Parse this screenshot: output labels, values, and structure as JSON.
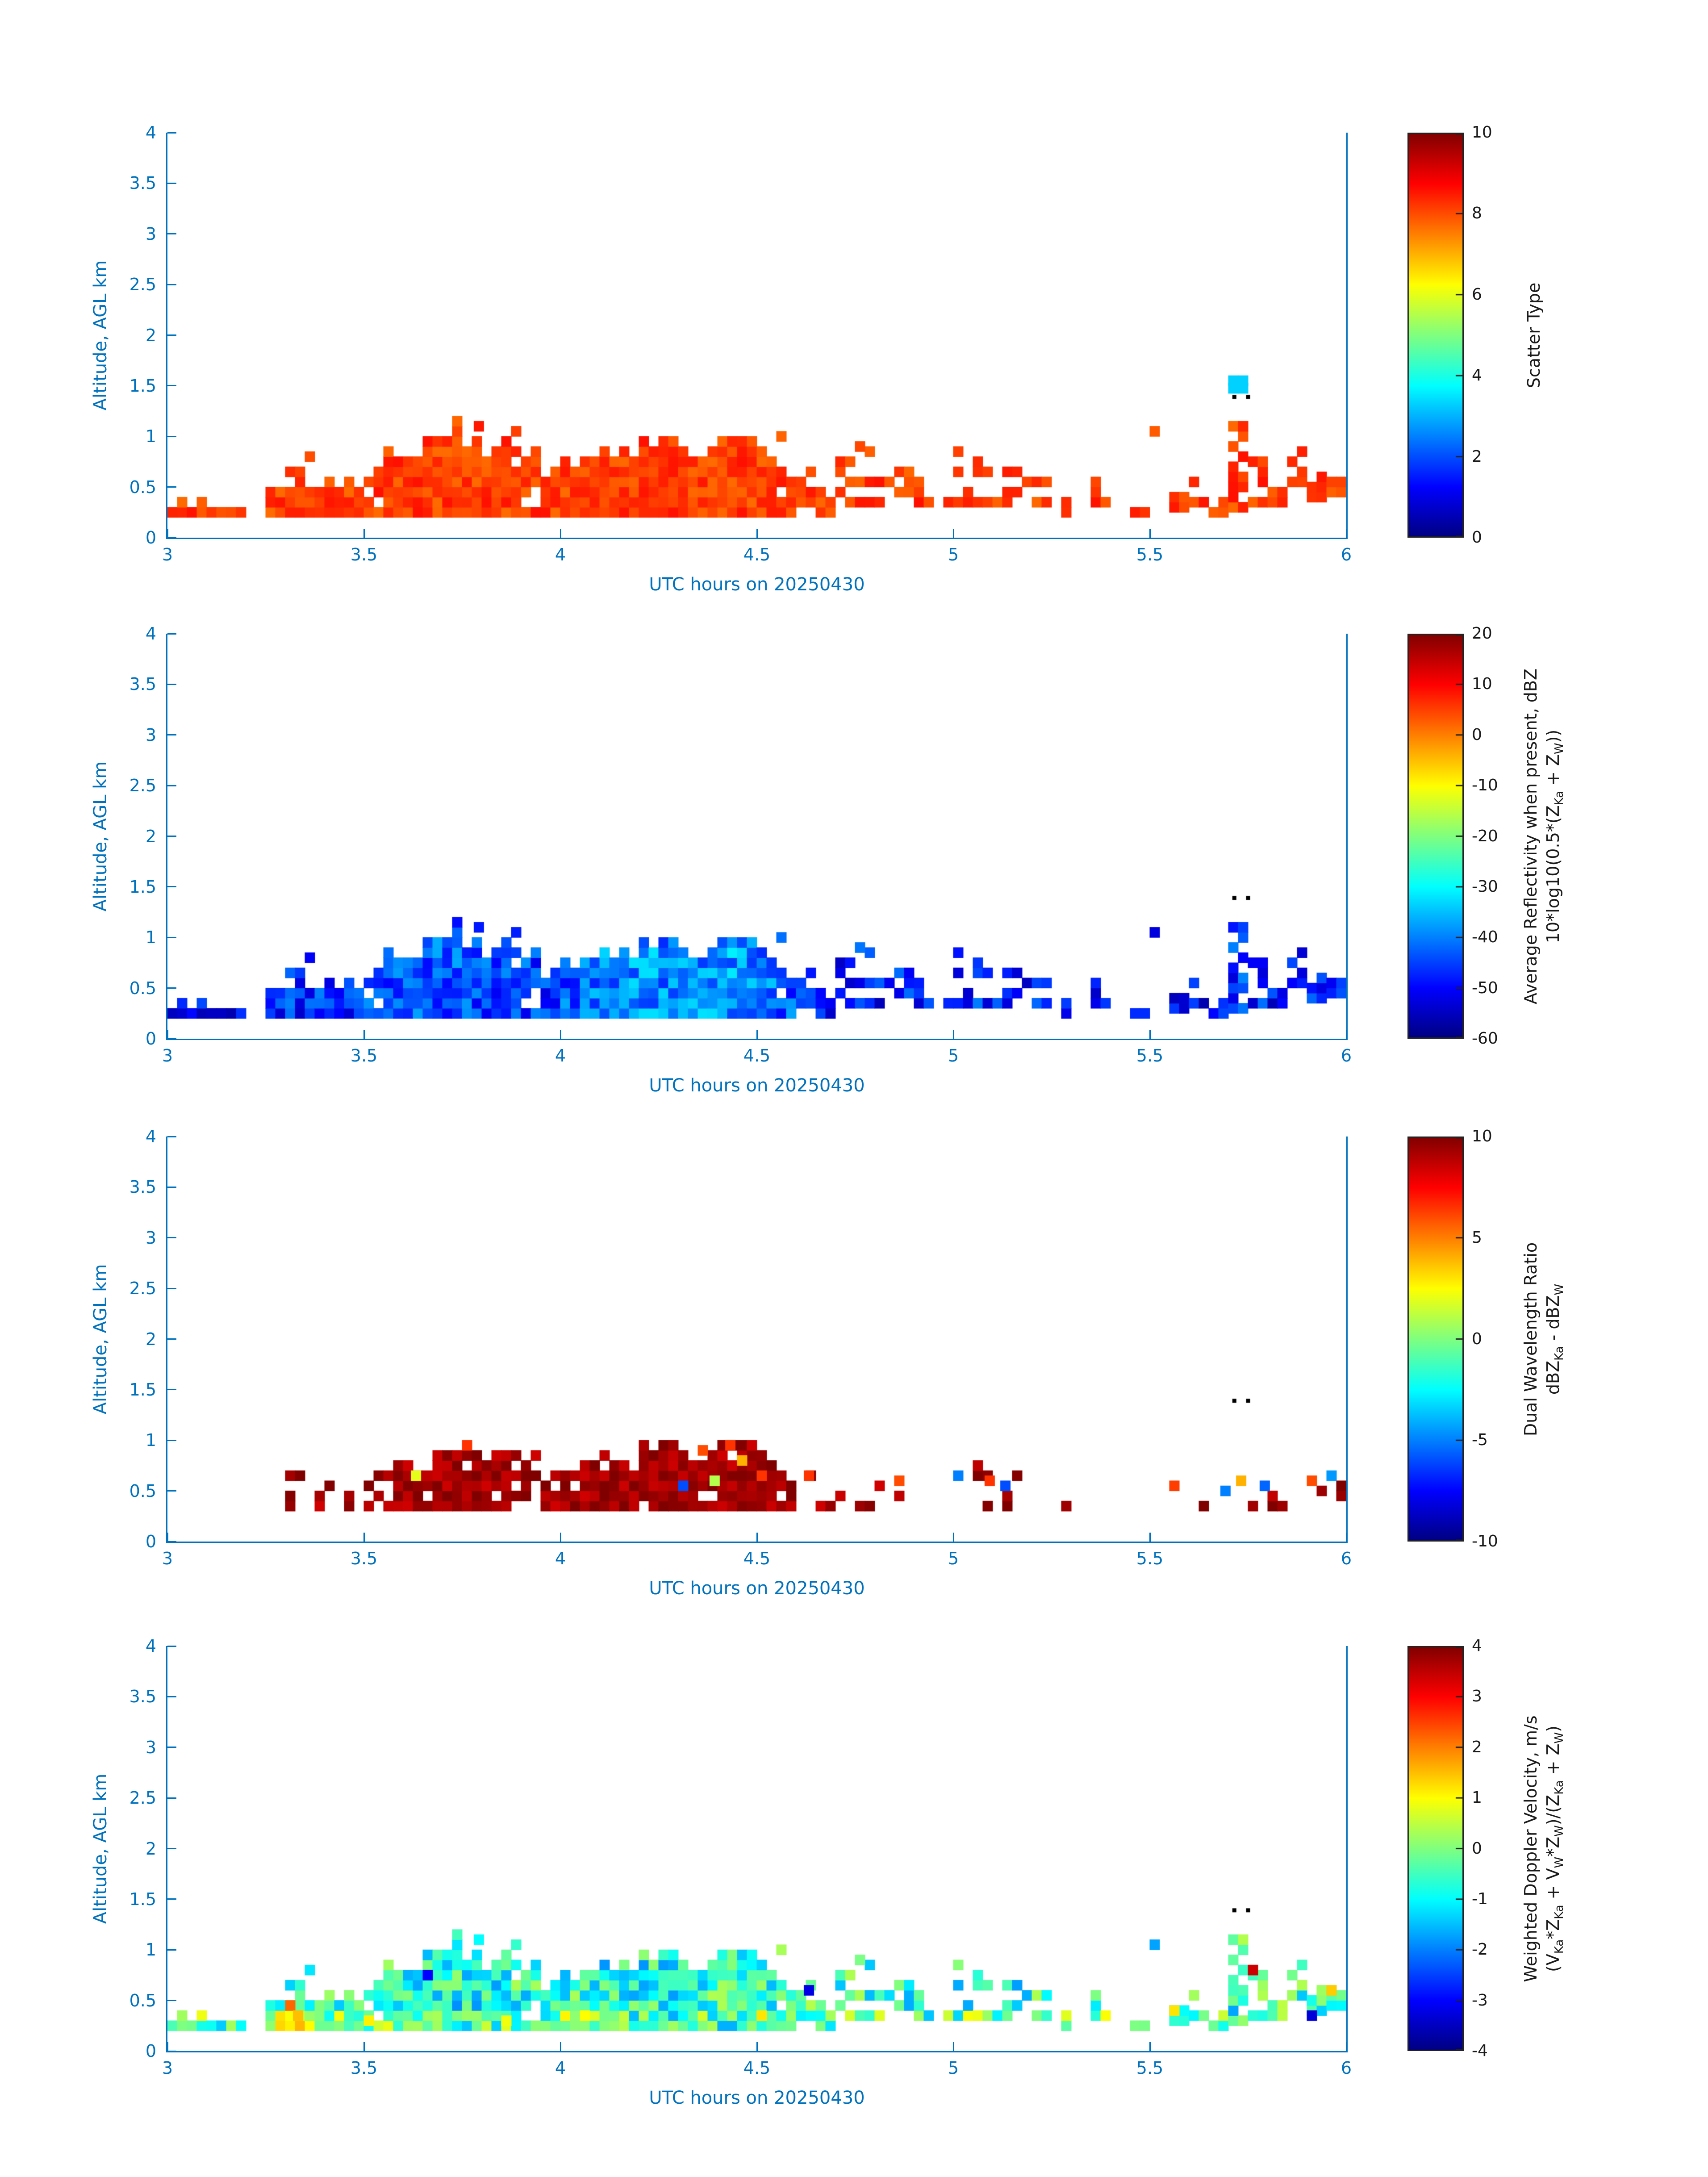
{
  "figure": {
    "background": "#ffffff",
    "axis_color": "#0072BD",
    "colorbar_text_color": "#1a1a1a",
    "date_label": "20250430"
  },
  "chart_data": {
    "type": "heatmap",
    "description": "Four stacked time-height radar quicklook panels, UTC hours 3 to 6 on 20250430, altitude 0 to 4 km AGL, jet colormap",
    "shared": {
      "xlabel": "UTC hours on 20250430",
      "ylabel": "Altitude, AGL km",
      "xlim": [
        3,
        6
      ],
      "ylim": [
        0,
        4
      ],
      "xticks": [
        "3",
        "3.5",
        "4",
        "4.5",
        "5",
        "5.5",
        "6"
      ],
      "yticks": [
        "0",
        "0.5",
        "1",
        "1.5",
        "2",
        "2.5",
        "3",
        "3.5",
        "4"
      ],
      "grid_dt_hours": 0.025,
      "grid_dz_km": 0.1,
      "columns_format": [
        "t_start_utc_h",
        "cloud_base_km",
        "cloud_top_km",
        "fill_density",
        "avg_reflectivity_dBZ",
        "doppler_velocity_ms"
      ],
      "columns": [
        [
          3.0,
          0.2,
          0.35,
          0.7,
          -50,
          -0.6
        ],
        [
          3.05,
          0.2,
          0.3,
          0.6,
          -50,
          -0.5
        ],
        [
          3.1,
          0.2,
          0.3,
          0.5,
          -51,
          -0.6
        ],
        [
          3.15,
          0.2,
          0.3,
          0.6,
          -50,
          -0.7
        ],
        [
          3.25,
          0.2,
          0.45,
          0.8,
          -48,
          -0.4
        ],
        [
          3.3,
          0.2,
          0.65,
          0.7,
          -47,
          -0.3
        ],
        [
          3.35,
          0.2,
          0.55,
          0.9,
          -46,
          -0.5
        ],
        [
          3.4,
          0.2,
          0.55,
          0.9,
          -46,
          -0.6
        ],
        [
          3.45,
          0.2,
          0.45,
          0.9,
          -47,
          -0.5
        ],
        [
          3.5,
          0.2,
          0.65,
          0.9,
          -45,
          -0.6
        ],
        [
          3.55,
          0.2,
          0.75,
          0.95,
          -44,
          -0.7
        ],
        [
          3.6,
          0.2,
          0.9,
          1,
          -43,
          -0.8
        ],
        [
          3.65,
          0.2,
          1.0,
          1,
          -43,
          -0.9
        ],
        [
          3.7,
          0.2,
          1.1,
          0.95,
          -43,
          -0.9
        ],
        [
          3.75,
          0.2,
          0.95,
          0.95,
          -44,
          -0.8
        ],
        [
          3.8,
          0.2,
          0.9,
          0.9,
          -44,
          -0.8
        ],
        [
          3.85,
          0.2,
          0.95,
          0.9,
          -44,
          -0.7
        ],
        [
          3.9,
          0.2,
          0.75,
          0.9,
          -45,
          -0.7
        ],
        [
          3.95,
          0.2,
          0.6,
          0.9,
          -46,
          -0.6
        ],
        [
          4.0,
          0.2,
          0.65,
          0.95,
          -43,
          -0.6
        ],
        [
          4.05,
          0.2,
          0.75,
          1,
          -41,
          -0.7
        ],
        [
          4.1,
          0.2,
          0.85,
          1,
          -40,
          -0.8
        ],
        [
          4.15,
          0.2,
          0.85,
          1,
          -39,
          -0.8
        ],
        [
          4.2,
          0.2,
          0.9,
          1,
          -39,
          -0.8
        ],
        [
          4.25,
          0.2,
          0.95,
          1,
          -40,
          -0.8
        ],
        [
          4.3,
          0.2,
          0.85,
          1,
          -40,
          -0.7
        ],
        [
          4.35,
          0.2,
          0.85,
          1,
          -39,
          -0.7
        ],
        [
          4.4,
          0.2,
          0.95,
          1,
          -38,
          -0.7
        ],
        [
          4.45,
          0.2,
          1.0,
          1,
          -39,
          -0.8
        ],
        [
          4.5,
          0.2,
          0.9,
          1,
          -40,
          -0.8
        ],
        [
          4.55,
          0.2,
          0.65,
          0.9,
          -43,
          -0.7
        ],
        [
          4.6,
          0.3,
          0.7,
          0.7,
          -46,
          -0.6
        ],
        [
          4.65,
          0.2,
          0.5,
          0.8,
          -47,
          -0.5
        ],
        [
          4.7,
          0.3,
          0.8,
          0.5,
          -48,
          -0.6
        ],
        [
          4.75,
          0.3,
          0.9,
          0.45,
          -48,
          -0.6
        ],
        [
          4.8,
          0.3,
          0.6,
          0.5,
          -49,
          -0.6
        ],
        [
          4.85,
          0.4,
          0.85,
          0.45,
          -48,
          -0.7
        ],
        [
          4.9,
          0.3,
          0.6,
          0.5,
          -49,
          -0.6
        ],
        [
          4.95,
          0.3,
          0.5,
          0.5,
          -50,
          -0.5
        ],
        [
          5.0,
          0.3,
          0.8,
          0.45,
          -48,
          -0.6
        ],
        [
          5.05,
          0.3,
          0.75,
          0.5,
          -47,
          -0.6
        ],
        [
          5.1,
          0.3,
          0.7,
          0.55,
          -47,
          -0.7
        ],
        [
          5.15,
          0.4,
          0.7,
          0.5,
          -48,
          -0.7
        ],
        [
          5.2,
          0.3,
          0.5,
          0.45,
          -49,
          -0.6
        ],
        [
          5.25,
          0.2,
          0.35,
          0.5,
          -50,
          -0.5
        ],
        [
          5.35,
          0.3,
          0.45,
          0.4,
          -50,
          -0.6
        ],
        [
          5.45,
          0.2,
          0.3,
          0.5,
          -51,
          -0.5
        ],
        [
          5.5,
          0.5,
          0.6,
          0.5,
          -49,
          -0.6
        ],
        [
          5.55,
          0.25,
          0.45,
          0.5,
          -49,
          -0.5
        ],
        [
          5.6,
          0.3,
          0.5,
          0.5,
          -50,
          -0.6
        ],
        [
          5.65,
          0.2,
          0.35,
          0.5,
          -50,
          -0.5
        ],
        [
          5.7,
          0.25,
          1.1,
          0.75,
          -46,
          -0.7
        ],
        [
          5.75,
          0.3,
          0.8,
          0.5,
          -47,
          -0.6
        ],
        [
          5.8,
          0.3,
          0.55,
          0.5,
          -49,
          -0.6
        ],
        [
          5.85,
          0.5,
          0.75,
          0.5,
          -48,
          -0.7
        ],
        [
          5.9,
          0.35,
          0.65,
          0.55,
          -48,
          -0.6
        ],
        [
          5.95,
          0.4,
          0.7,
          0.55,
          -47,
          -0.6
        ]
      ],
      "extra_cells": [
        [
          3.35,
          0.75
        ],
        [
          3.78,
          1.05
        ],
        [
          4.55,
          0.95
        ],
        [
          4.75,
          0.85
        ],
        [
          5.5,
          1.0
        ]
      ],
      "black_dots": [
        [
          5.71,
          1.36
        ],
        [
          5.745,
          1.36
        ]
      ]
    },
    "panels": [
      {
        "key": "scatter-type",
        "colorbar_label_lines": [
          "Scatter Type"
        ],
        "clim": [
          0,
          10
        ],
        "colorbar_ticks": [
          "0",
          "2",
          "4",
          "6",
          "8",
          "10"
        ],
        "colormap": "jet",
        "value_model": {
          "base": 8.15,
          "jitter": 0.45,
          "clamp": [
            0,
            10
          ]
        },
        "specks": [
          [
            5.7,
            1.425,
            3.3
          ],
          [
            5.725,
            1.425,
            3.3
          ],
          [
            5.7,
            1.5,
            3.3
          ],
          [
            5.725,
            1.5,
            3.3
          ]
        ]
      },
      {
        "key": "average-reflectivity",
        "colorbar_label_lines": [
          "Average Reflectivity when present, dBZ",
          "10*log10(0.5*(Z_{Ka} + Z_{W}))"
        ],
        "clim": [
          -60,
          20
        ],
        "colorbar_ticks": [
          "-60",
          "-50",
          "-40",
          "-30",
          "-20",
          "-10",
          "0",
          "10",
          "20"
        ],
        "colormap": "jet",
        "value_model": {
          "column_field": 4,
          "jitter": 7,
          "clamp": [
            -58,
            -26
          ]
        },
        "specks": []
      },
      {
        "key": "dual-wavelength-ratio",
        "colorbar_label_lines": [
          "Dual Wavelength Ratio",
          "dBZ_{Ka} - dBZ_{W}"
        ],
        "clim": [
          -10,
          10
        ],
        "colorbar_ticks": [
          "-10",
          "-5",
          "0",
          "5",
          "10"
        ],
        "colormap": "jet",
        "value_model": {
          "base": 9.3,
          "jitter": 0.9,
          "clamp": [
            -10,
            10
          ]
        },
        "mask_ranges": [
          [
            3.28,
            3.56,
            0.3,
            0.7,
            0.5
          ],
          [
            3.56,
            4.0,
            0.3,
            0.9,
            0.85
          ],
          [
            4.0,
            4.58,
            0.3,
            0.95,
            0.92
          ],
          [
            4.58,
            5.3,
            0.3,
            0.8,
            0.3
          ],
          [
            5.48,
            6.0,
            0.3,
            0.75,
            0.3
          ]
        ],
        "specks": [
          [
            3.75,
            0.9,
            6.5
          ],
          [
            3.62,
            0.6,
            2
          ],
          [
            4.3,
            0.5,
            -6
          ],
          [
            4.35,
            0.85,
            6
          ],
          [
            4.42,
            0.9,
            6.5
          ],
          [
            4.45,
            0.75,
            4
          ],
          [
            4.5,
            0.6,
            6.5
          ],
          [
            4.38,
            0.55,
            1
          ],
          [
            4.62,
            0.6,
            6.5
          ],
          [
            4.85,
            0.55,
            6
          ],
          [
            5.0,
            0.6,
            -5
          ],
          [
            5.08,
            0.55,
            6.5
          ],
          [
            5.12,
            0.5,
            -6
          ],
          [
            5.55,
            0.5,
            6.3
          ],
          [
            5.68,
            0.45,
            -5
          ],
          [
            5.72,
            0.55,
            4
          ],
          [
            5.78,
            0.5,
            -5.5
          ],
          [
            5.9,
            0.55,
            6
          ],
          [
            5.95,
            0.6,
            -4.5
          ]
        ]
      },
      {
        "key": "weighted-doppler-velocity",
        "colorbar_label_lines": [
          "Weighted Doppler Velocity, m/s",
          "(V_{Ka}*Z_{Ka} + V_{W}*Z_{W})/(Z_{Ka} + Z_{W})"
        ],
        "clim": [
          -4,
          4
        ],
        "colorbar_ticks": [
          "-4",
          "-3",
          "-2",
          "-1",
          "0",
          "1",
          "2",
          "3",
          "4"
        ],
        "colormap": "jet",
        "value_model": {
          "column_field": 5,
          "jitter": 1.1,
          "clamp": [
            -3.8,
            3.8
          ],
          "bottom_boost": 0.9
        },
        "specks": [
          [
            3.3,
            0.4,
            2.2
          ],
          [
            3.32,
            0.3,
            1.5
          ],
          [
            3.5,
            0.25,
            1.1
          ],
          [
            3.65,
            0.7,
            -3
          ],
          [
            3.85,
            0.25,
            0.9
          ],
          [
            4.05,
            0.3,
            1
          ],
          [
            4.5,
            0.3,
            1.2
          ],
          [
            4.62,
            0.55,
            -3.2
          ],
          [
            5.55,
            0.35,
            1.2
          ],
          [
            5.75,
            0.75,
            3.4
          ],
          [
            5.9,
            0.3,
            -3.3
          ],
          [
            5.95,
            0.55,
            1.4
          ]
        ]
      }
    ]
  }
}
